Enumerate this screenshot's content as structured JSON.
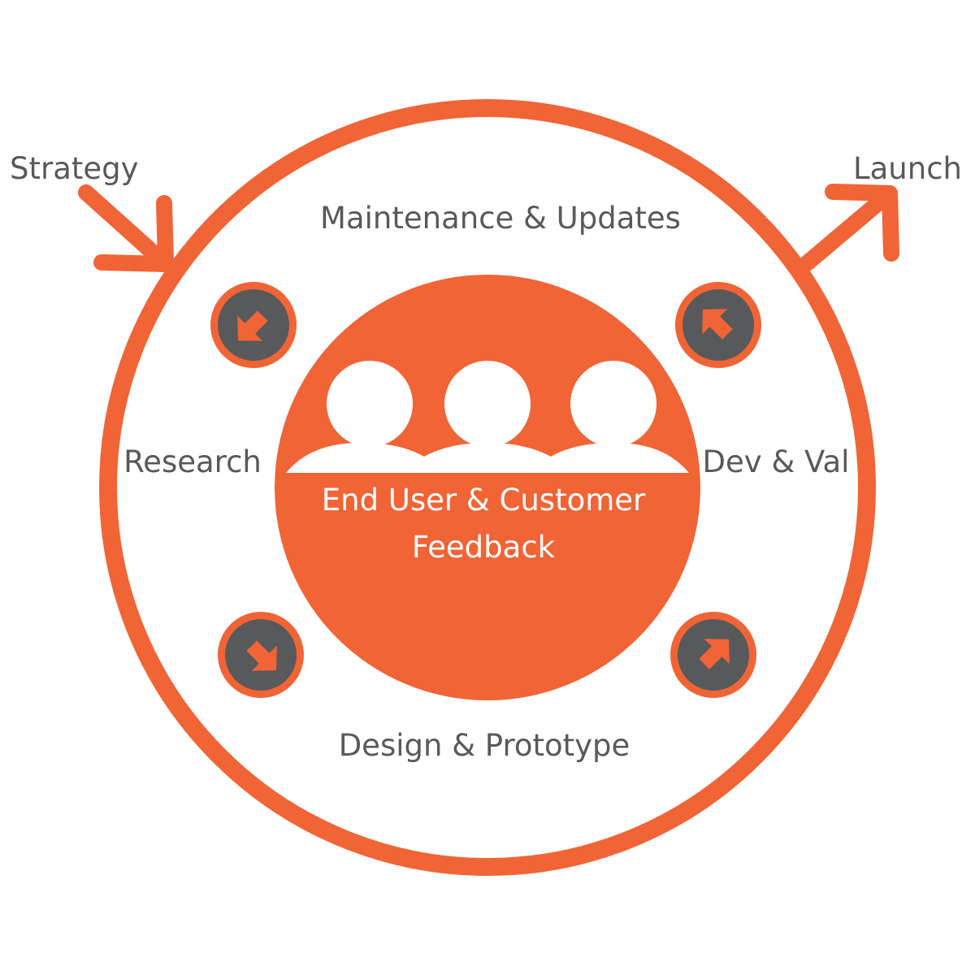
{
  "colors": {
    "accent": "#F16436",
    "dark": "#58595B",
    "text": "#58595B",
    "background": "#FFFFFF"
  },
  "labels": {
    "strategy": "Strategy",
    "launch": "Launch",
    "maintenance": "Maintenance & Updates",
    "research": "Research",
    "dev_val": "Dev & Val",
    "design": "Design & Prototype",
    "center_line1": "End User & Customer",
    "center_line2": "Feedback"
  },
  "icons": {
    "people": "people-icon",
    "arrow_down_left": "arrow-down-left-icon",
    "arrow_up_left": "arrow-up-left-icon",
    "arrow_down_right": "arrow-down-right-icon",
    "arrow_up_right": "arrow-up-right-icon",
    "entry_arrow": "entry-arrow-icon",
    "exit_arrow": "exit-arrow-icon"
  }
}
